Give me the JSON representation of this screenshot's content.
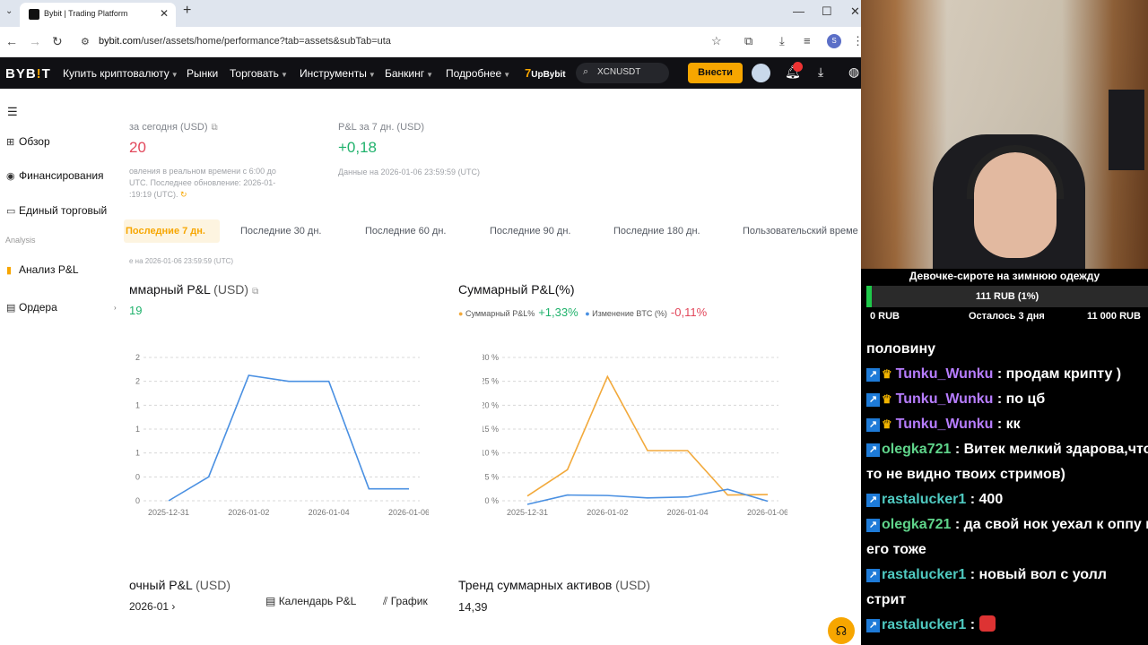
{
  "browser": {
    "tab_title": "Bybit | Trading Platform",
    "url_host": "bybit.com",
    "url_path": "/user/assets/home/performance?tab=assets&subTab=uta",
    "profile_letter": "S"
  },
  "nav": {
    "logo": "BYB",
    "logo_tail": "T",
    "items": [
      "Купить криптовалюту",
      "Рынки",
      "Торговать",
      "Инструменты",
      "Банкинг",
      "Подробнее"
    ],
    "promo_num": "7",
    "promo_text": "UpBybit",
    "search_text": "XCNUSDT",
    "login_label": "Внести"
  },
  "sidebar": {
    "items": [
      "Обзор",
      "Финансирования",
      "Единый торговый"
    ],
    "group_label": "Analysis",
    "analysis_items": [
      "Анализ P&L",
      "Ордера"
    ]
  },
  "summary": {
    "today_label": "за сегодня (USD)",
    "today_value": "20",
    "today_note_1": "овления в реальном времени с 6:00 до",
    "today_note_2": "UTC. Последнее обновление: 2026-01-",
    "today_note_3": ":19:19 (UTC).",
    "week_label": "P&L за 7 дн. (USD)",
    "week_value": "+0,18",
    "week_note": "Данные на 2026-01-06 23:59:59 (UTC)"
  },
  "periods": [
    "Последние 7 дн.",
    "Последние 30 дн.",
    "Последние 60 дн.",
    "Последние 90 дн.",
    "Последние 180 дн.",
    "Пользовательский време"
  ],
  "data_note": "е на 2026-01-06 23:59:59 (UTC)",
  "pnl_usd_chart": {
    "title": "ммарный P&L",
    "unit": "(USD)",
    "value": "19"
  },
  "pnl_pct_chart": {
    "title": "Суммарный P&L(%)",
    "legend_pnl": "Суммарный P&L%",
    "legend_pnl_value": "+1,33%",
    "legend_btc": "Изменение BTC (%)",
    "legend_btc_value": "-0,11%"
  },
  "bottom": {
    "daily_title": "очный P&L",
    "daily_unit": "(USD)",
    "month": "2026-01",
    "calendar_tab": "Календарь P&L",
    "graph_tab": "График",
    "trend_title": "Тренд суммарных активов",
    "trend_unit": "(USD)",
    "trend_value": "14,39"
  },
  "chart_data": [
    {
      "type": "line",
      "title": "ммарный P&L (USD)",
      "x": [
        "2025-12-31",
        "2026-01-01",
        "2026-01-02",
        "2026-01-03",
        "2026-01-04",
        "2026-01-05",
        "2026-01-06"
      ],
      "x_ticks": [
        "2025-12-31",
        "2026-01-02",
        "2026-01-04",
        "2026-01-06"
      ],
      "y_ticks": [
        "0",
        "0",
        "1",
        "1",
        "1",
        "2",
        "2"
      ],
      "series": [
        {
          "values": [
            0,
            0.4,
            2.1,
            2.0,
            2.0,
            0.2,
            0.2
          ],
          "color": "#4a90e2"
        }
      ],
      "ylim": [
        0,
        2.4
      ],
      "grid": true
    },
    {
      "type": "line",
      "title": "Суммарный P&L(%)",
      "x": [
        "2025-12-31",
        "2026-01-01",
        "2026-01-02",
        "2026-01-03",
        "2026-01-04",
        "2026-01-05",
        "2026-01-06"
      ],
      "x_ticks": [
        "2025-12-31",
        "2026-01-02",
        "2026-01-04",
        "2026-01-06"
      ],
      "y_ticks": [
        "0 %",
        "5 %",
        "10 %",
        "15 %",
        "20 %",
        "25 %",
        "30 %"
      ],
      "series": [
        {
          "name": "Суммарный P&L%",
          "values": [
            1,
            6.5,
            26,
            10.5,
            10.5,
            1.2,
            1.3
          ],
          "color": "#f2a93b"
        },
        {
          "name": "Изменение BTC (%)",
          "values": [
            -1,
            1.2,
            1.1,
            0.6,
            0.8,
            2.4,
            -0.1
          ],
          "color": "#4a90e2"
        }
      ],
      "ylim": [
        0,
        30
      ],
      "legend": "top-left",
      "grid": true
    }
  ],
  "stream": {
    "goal_title": "Девочке-сироте на зимнюю одежду",
    "goal_progress": 0.01,
    "goal_text": "111 RUB (1%)",
    "goal_min": "0 RUB",
    "goal_left": "Осталось 3 дня",
    "goal_max": "11 000 RUB",
    "chat": [
      {
        "user": "",
        "text": "половину",
        "type": "cont"
      },
      {
        "user": "Tunku_Wunku",
        "text": ": продам крипту )",
        "type": "tunku"
      },
      {
        "user": "Tunku_Wunku",
        "text": ": по цб",
        "type": "tunku"
      },
      {
        "user": "Tunku_Wunku",
        "text": ": кк",
        "type": "tunku"
      },
      {
        "user": "olegka721",
        "text": ": Витек мелкий здарова,что",
        "type": "olegka"
      },
      {
        "user": "",
        "text": "то не видно твоих стримов)",
        "type": "cont"
      },
      {
        "user": "rastalucker1",
        "text": ": 400",
        "type": "rasta"
      },
      {
        "user": "olegka721",
        "text": ": да свой нок уехал к оппу и",
        "type": "olegka"
      },
      {
        "user": "",
        "text": "его тоже",
        "type": "cont"
      },
      {
        "user": "rastalucker1",
        "text": ": новый вол с уолл",
        "type": "rasta"
      },
      {
        "user": "",
        "text": "стрит",
        "type": "cont"
      },
      {
        "user": "rastalucker1",
        "text": ": ",
        "type": "rasta-emote"
      }
    ]
  }
}
